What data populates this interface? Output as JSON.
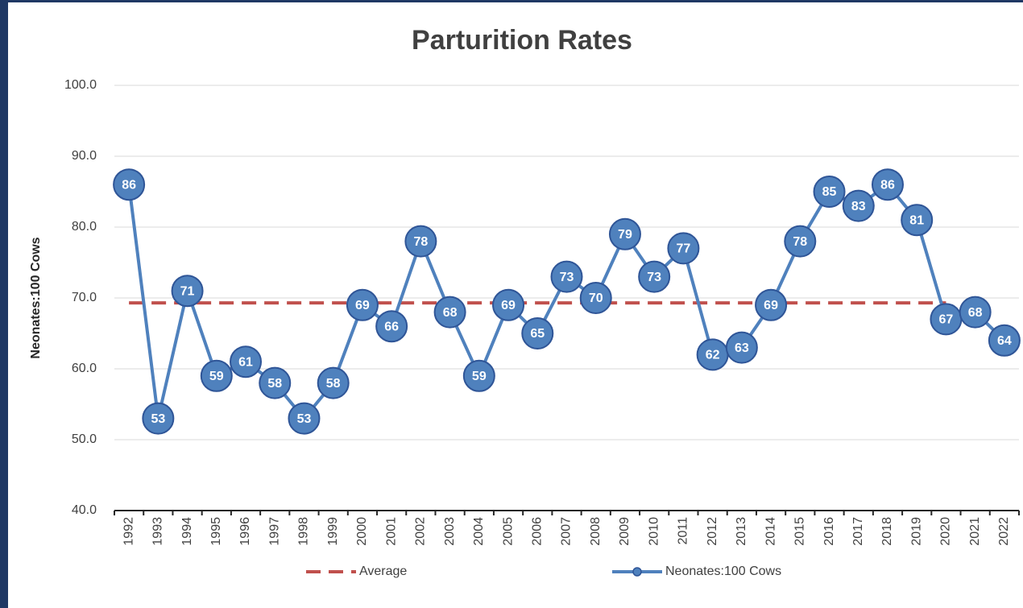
{
  "chart_data": {
    "type": "line",
    "title": "Parturition Rates",
    "y_label": "Neonates:100 Cows",
    "categories": [
      "1992",
      "1993",
      "1994",
      "1995",
      "1996",
      "1997",
      "1998",
      "1999",
      "2000",
      "2001",
      "2002",
      "2003",
      "2004",
      "2005",
      "2006",
      "2007",
      "2008",
      "2009",
      "2010",
      "2011",
      "2012",
      "2013",
      "2014",
      "2015",
      "2016",
      "2017",
      "2018",
      "2019",
      "2020",
      "2021",
      "2022"
    ],
    "series": [
      {
        "name": "Average",
        "color": "#c0504d",
        "dashed": true,
        "marker": false,
        "data_labels": false,
        "values": [
          69.3,
          69.3,
          69.3,
          69.3,
          69.3,
          69.3,
          69.3,
          69.3,
          69.3,
          69.3,
          69.3,
          69.3,
          69.3,
          69.3,
          69.3,
          69.3,
          69.3,
          69.3,
          69.3,
          69.3,
          69.3,
          69.3,
          69.3,
          69.3,
          69.3,
          69.3,
          69.3,
          69.3,
          69.3,
          null,
          null
        ]
      },
      {
        "name": "Neonates:100 Cows",
        "color": "#4f81bd",
        "dashed": false,
        "marker": true,
        "data_labels": true,
        "values": [
          86,
          53,
          71,
          59,
          61,
          58,
          53,
          58,
          69,
          66,
          78,
          68,
          59,
          69,
          65,
          73,
          70,
          79,
          73,
          77,
          62,
          63,
          69,
          78,
          85,
          83,
          86,
          81,
          67,
          68,
          64
        ]
      }
    ],
    "ylim": [
      40,
      100
    ],
    "yticks": [
      {
        "value": 40,
        "label": "40.0"
      },
      {
        "value": 50,
        "label": "50.0"
      },
      {
        "value": 60,
        "label": "60.0"
      },
      {
        "value": 70,
        "label": "70.0"
      },
      {
        "value": 80,
        "label": "80.0"
      },
      {
        "value": 90,
        "label": "90.0"
      },
      {
        "value": 100,
        "label": "100.0"
      }
    ],
    "grid": true,
    "legend": "bottom"
  }
}
